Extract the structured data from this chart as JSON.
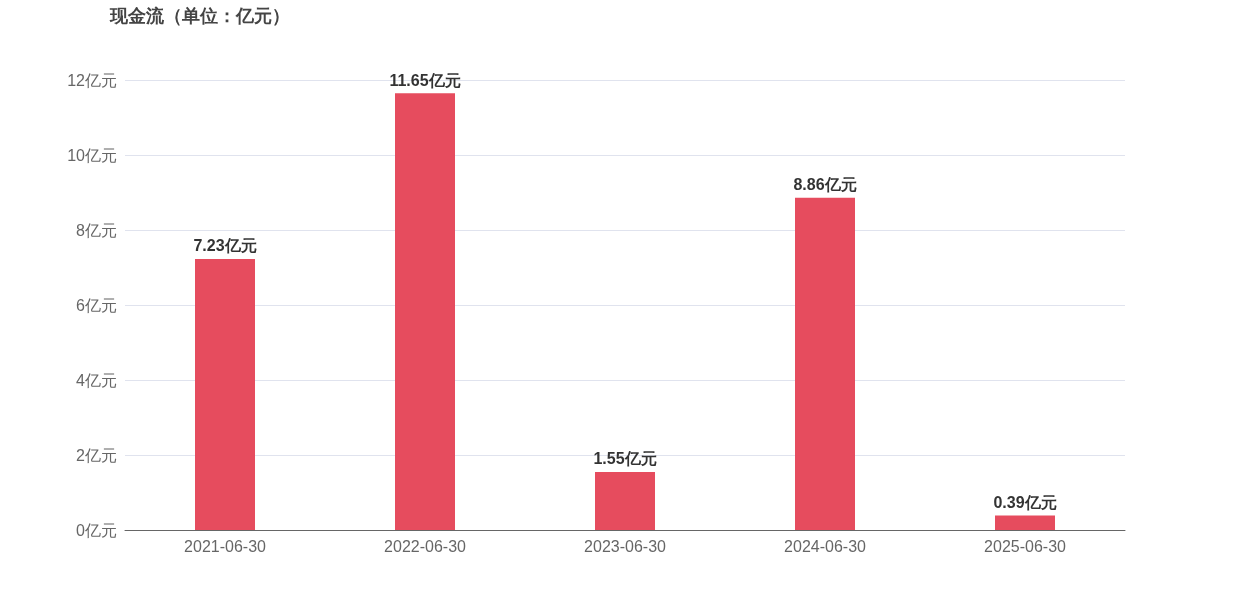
{
  "chart_data": {
    "type": "bar",
    "title": "现金流（单位：亿元）",
    "categories": [
      "2021-06-30",
      "2022-06-30",
      "2023-06-30",
      "2024-06-30",
      "2025-06-30"
    ],
    "values": [
      7.23,
      11.65,
      1.55,
      8.86,
      0.39
    ],
    "value_labels": [
      "7.23亿元",
      "11.65亿元",
      "1.55亿元",
      "8.86亿元",
      "0.39亿元"
    ],
    "color": "#e64c5e",
    "ylim": [
      0,
      12
    ],
    "yticks": [
      {
        "value": 0,
        "label": "0亿元"
      },
      {
        "value": 2,
        "label": "2亿元"
      },
      {
        "value": 4,
        "label": "4亿元"
      },
      {
        "value": 6,
        "label": "6亿元"
      },
      {
        "value": 8,
        "label": "8亿元"
      },
      {
        "value": 10,
        "label": "10亿元"
      },
      {
        "value": 12,
        "label": "12亿元"
      }
    ],
    "grid": "y"
  }
}
